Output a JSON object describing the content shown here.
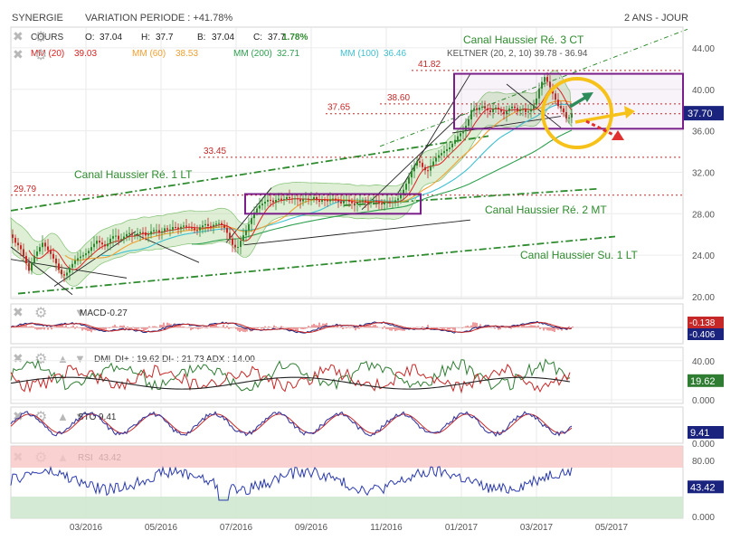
{
  "header": {
    "symbol": "SYNERGIE",
    "variation": "VARIATION PERIODE : +41.78%",
    "period": "2 ANS - JOUR"
  },
  "legend": {
    "cours_label": "COURS",
    "ohlc": [
      {
        "k": "O:",
        "v": "37.04"
      },
      {
        "k": "H:",
        "v": "37.7"
      },
      {
        "k": "B:",
        "v": "37.04"
      },
      {
        "k": "C:",
        "v": "37.7"
      }
    ],
    "change": "1.78%",
    "ma": [
      {
        "label": "MM (20)",
        "value": "39.03",
        "color": "#e02020"
      },
      {
        "label": "MM (60)",
        "value": "38.53",
        "color": "#f0a030"
      },
      {
        "label": "MM (200)",
        "value": "32.71",
        "color": "#30a050"
      },
      {
        "label": "MM (100)",
        "value": "36.46",
        "color": "#40c0d0"
      }
    ],
    "keltner": "KELTNER (20, 2, 10) 39.78 - 36.94"
  },
  "colors": {
    "up": "#2f8a2f",
    "down": "#c62828",
    "annot": "#2e8b2e",
    "support": "#c62828",
    "box": "#7a1f8a",
    "band": "#b5dca5",
    "last_price": "#1a237e",
    "rsi_top": "#f7c6c6",
    "rsi_bottom": "#cfe8cf"
  },
  "chart_data": [
    {
      "type": "line",
      "title": "",
      "series": [
        {
          "name": "COURS"
        }
      ],
      "x_labels": [
        "03/2016",
        "05/2016",
        "07/2016",
        "09/2016",
        "11/2016",
        "01/2017",
        "03/2017",
        "05/2017"
      ],
      "y_ticks": [
        "44.00",
        "40.00",
        "36.00",
        "32.00",
        "28.00",
        "24.00",
        "20.00"
      ],
      "ylim": [
        20,
        46
      ],
      "last_value": "37.70",
      "points": [
        [
          0,
          26.0
        ],
        [
          5,
          25.2
        ],
        [
          10,
          24.8
        ],
        [
          15,
          23.7
        ],
        [
          20,
          22.5
        ],
        [
          25,
          23.8
        ],
        [
          30,
          24.5
        ],
        [
          35,
          25.2
        ],
        [
          40,
          24.6
        ],
        [
          45,
          24.0
        ],
        [
          50,
          23.2
        ],
        [
          55,
          22.2
        ],
        [
          60,
          22.0
        ],
        [
          65,
          22.8
        ],
        [
          70,
          23.4
        ],
        [
          75,
          23.8
        ],
        [
          80,
          24.0
        ],
        [
          85,
          24.3
        ],
        [
          90,
          24.9
        ],
        [
          95,
          25.4
        ],
        [
          100,
          25.1
        ],
        [
          105,
          24.8
        ],
        [
          110,
          25.6
        ],
        [
          115,
          26.0
        ],
        [
          120,
          25.4
        ],
        [
          125,
          25.8
        ],
        [
          130,
          26.2
        ],
        [
          135,
          25.9
        ],
        [
          140,
          26.1
        ],
        [
          145,
          26.3
        ],
        [
          150,
          25.8
        ],
        [
          155,
          26.3
        ],
        [
          160,
          26.5
        ],
        [
          165,
          26.1
        ],
        [
          170,
          26.6
        ],
        [
          175,
          26.4
        ],
        [
          180,
          26.8
        ],
        [
          185,
          26.5
        ],
        [
          190,
          26.9
        ],
        [
          195,
          26.7
        ],
        [
          200,
          26.6
        ],
        [
          205,
          26.3
        ],
        [
          210,
          26.8
        ],
        [
          215,
          27.0
        ],
        [
          220,
          26.7
        ],
        [
          225,
          27.0
        ],
        [
          230,
          27.1
        ],
        [
          235,
          26.8
        ],
        [
          240,
          26.0
        ],
        [
          245,
          25.0
        ],
        [
          250,
          24.6
        ],
        [
          255,
          25.6
        ],
        [
          260,
          26.4
        ],
        [
          265,
          27.4
        ],
        [
          270,
          28.3
        ],
        [
          275,
          28.8
        ],
        [
          280,
          29.1
        ],
        [
          285,
          29.4
        ],
        [
          290,
          29.1
        ],
        [
          295,
          29.5
        ],
        [
          300,
          29.3
        ],
        [
          305,
          29.6
        ],
        [
          310,
          29.4
        ],
        [
          315,
          29.5
        ],
        [
          320,
          29.2
        ],
        [
          325,
          29.5
        ],
        [
          330,
          29.3
        ],
        [
          335,
          29.6
        ],
        [
          340,
          29.1
        ],
        [
          345,
          29.4
        ],
        [
          350,
          29.2
        ],
        [
          355,
          29.5
        ],
        [
          360,
          29.3
        ],
        [
          365,
          29.0
        ],
        [
          370,
          29.4
        ],
        [
          375,
          29.1
        ],
        [
          380,
          28.9
        ],
        [
          385,
          29.2
        ],
        [
          390,
          29.3
        ],
        [
          395,
          29.0
        ],
        [
          400,
          29.3
        ],
        [
          405,
          29.1
        ],
        [
          410,
          28.9
        ],
        [
          415,
          29.2
        ],
        [
          420,
          29.0
        ],
        [
          425,
          29.3
        ],
        [
          430,
          29.6
        ],
        [
          435,
          30.5
        ],
        [
          440,
          31.5
        ],
        [
          445,
          32.5
        ],
        [
          450,
          33.2
        ],
        [
          455,
          32.5
        ],
        [
          460,
          32.0
        ],
        [
          465,
          32.8
        ],
        [
          470,
          33.4
        ],
        [
          475,
          33.8
        ],
        [
          480,
          34.1
        ],
        [
          485,
          34.4
        ],
        [
          490,
          35.0
        ],
        [
          495,
          35.6
        ],
        [
          500,
          36.0
        ],
        [
          505,
          36.8
        ],
        [
          510,
          38.3
        ],
        [
          515,
          38.0
        ],
        [
          520,
          38.4
        ],
        [
          525,
          38.1
        ],
        [
          530,
          37.8
        ],
        [
          535,
          38.3
        ],
        [
          540,
          38.0
        ],
        [
          545,
          37.6
        ],
        [
          550,
          38.1
        ],
        [
          555,
          38.4
        ],
        [
          560,
          37.9
        ],
        [
          565,
          38.2
        ],
        [
          570,
          37.7
        ],
        [
          575,
          38.1
        ],
        [
          580,
          38.8
        ],
        [
          585,
          40.4
        ],
        [
          590,
          41.2
        ],
        [
          595,
          40.4
        ],
        [
          600,
          39.4
        ],
        [
          605,
          38.4
        ],
        [
          610,
          38.0
        ],
        [
          615,
          37.0
        ],
        [
          620,
          37.7
        ]
      ]
    },
    {
      "type": "line",
      "title": "MACD",
      "value_label": "-0.27",
      "series": [
        {
          "name": "MACD"
        }
      ],
      "boxes": [
        {
          "text": "-0.138",
          "color": "#c62828"
        },
        {
          "text": "-0.406",
          "color": "#1a237e"
        }
      ],
      "ylim": [
        -1,
        1
      ]
    },
    {
      "type": "line",
      "title": "DMI",
      "value_label": "DI+ : 19.62 DI- : 21.73 ADX : 14.00",
      "series": [
        {
          "name": "DI+"
        },
        {
          "name": "DI-"
        },
        {
          "name": "ADX"
        }
      ],
      "y_ticks": [
        "40.00",
        "0.000"
      ],
      "boxes": [
        {
          "text": "19.62",
          "color": "#2e7d32"
        }
      ],
      "ylim": [
        0,
        50
      ]
    },
    {
      "type": "line",
      "title": "STO",
      "value_label": "9.41",
      "series": [
        {
          "name": "STO"
        }
      ],
      "y_ticks": [
        "0.000"
      ],
      "boxes": [
        {
          "text": "9.41",
          "color": "#1a237e"
        }
      ],
      "ylim": [
        0,
        100
      ]
    },
    {
      "type": "line",
      "title": "RSI",
      "value_label": "43.42",
      "series": [
        {
          "name": "RSI"
        }
      ],
      "y_ticks": [
        "80.00",
        "40.00",
        "0.000"
      ],
      "boxes": [
        {
          "text": "43.42",
          "color": "#1a237e"
        }
      ],
      "ylim": [
        0,
        100
      ]
    }
  ],
  "annotations": [
    {
      "text": "Canal Haussier Ré. 3 CT",
      "color": "#2e8b2e"
    },
    {
      "text": "Canal Haussier Ré. 1 LT",
      "color": "#2e8b2e"
    },
    {
      "text": "Canal Haussier Ré. 2 MT",
      "color": "#2e8b2e"
    },
    {
      "text": "Canal Haussier Su. 1 LT",
      "color": "#2e8b2e"
    }
  ],
  "levels": [
    {
      "text": "41.82",
      "value": 41.82
    },
    {
      "text": "38.60",
      "value": 38.6
    },
    {
      "text": "37.65",
      "value": 37.65
    },
    {
      "text": "33.45",
      "value": 33.45
    },
    {
      "text": "29.79",
      "value": 29.79
    }
  ]
}
